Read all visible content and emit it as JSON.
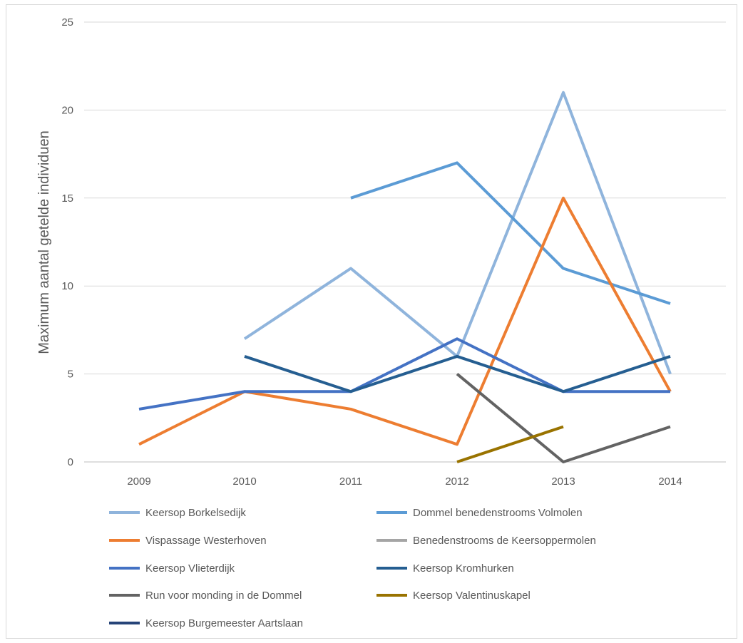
{
  "chart_data": {
    "type": "line",
    "title": "",
    "xlabel": "",
    "ylabel": "Maximum aantal getelde individuen",
    "categories": [
      "2009",
      "2010",
      "2011",
      "2012",
      "2013",
      "2014"
    ],
    "ylim": [
      0,
      25
    ],
    "yticks": [
      0,
      5,
      10,
      15,
      20,
      25
    ],
    "grid": true,
    "legend_position": "bottom",
    "series": [
      {
        "name": "Keersop Borkelsedijk",
        "color": "#8fb4dc",
        "values": [
          null,
          7,
          11,
          6,
          21,
          5
        ]
      },
      {
        "name": "Dommel benedenstrooms Volmolen",
        "color": "#5b9bd5",
        "values": [
          null,
          null,
          15,
          17,
          11,
          9
        ]
      },
      {
        "name": "Vispassage Westerhoven",
        "color": "#ed7d31",
        "values": [
          1,
          4,
          3,
          1,
          15,
          4
        ]
      },
      {
        "name": "Benedenstrooms de Keersoppermolen",
        "color": "#a5a5a5",
        "values": [
          null,
          null,
          null,
          null,
          null,
          null
        ]
      },
      {
        "name": "Keersop Vlieterdijk",
        "color": "#4472c4",
        "values": [
          3,
          4,
          4,
          7,
          4,
          4
        ]
      },
      {
        "name": "Keersop Kromhurken",
        "color": "#255e91",
        "values": [
          null,
          6,
          4,
          6,
          4,
          6
        ]
      },
      {
        "name": "Run voor monding in de Dommel",
        "color": "#636363",
        "values": [
          null,
          null,
          null,
          5,
          0,
          2
        ]
      },
      {
        "name": "Keersop Valentinuskapel",
        "color": "#997300",
        "values": [
          null,
          null,
          null,
          0,
          2,
          null
        ]
      },
      {
        "name": "Keersop Burgemeester Aartslaan",
        "color": "#264478",
        "values": [
          null,
          null,
          null,
          null,
          null,
          null
        ]
      }
    ]
  }
}
